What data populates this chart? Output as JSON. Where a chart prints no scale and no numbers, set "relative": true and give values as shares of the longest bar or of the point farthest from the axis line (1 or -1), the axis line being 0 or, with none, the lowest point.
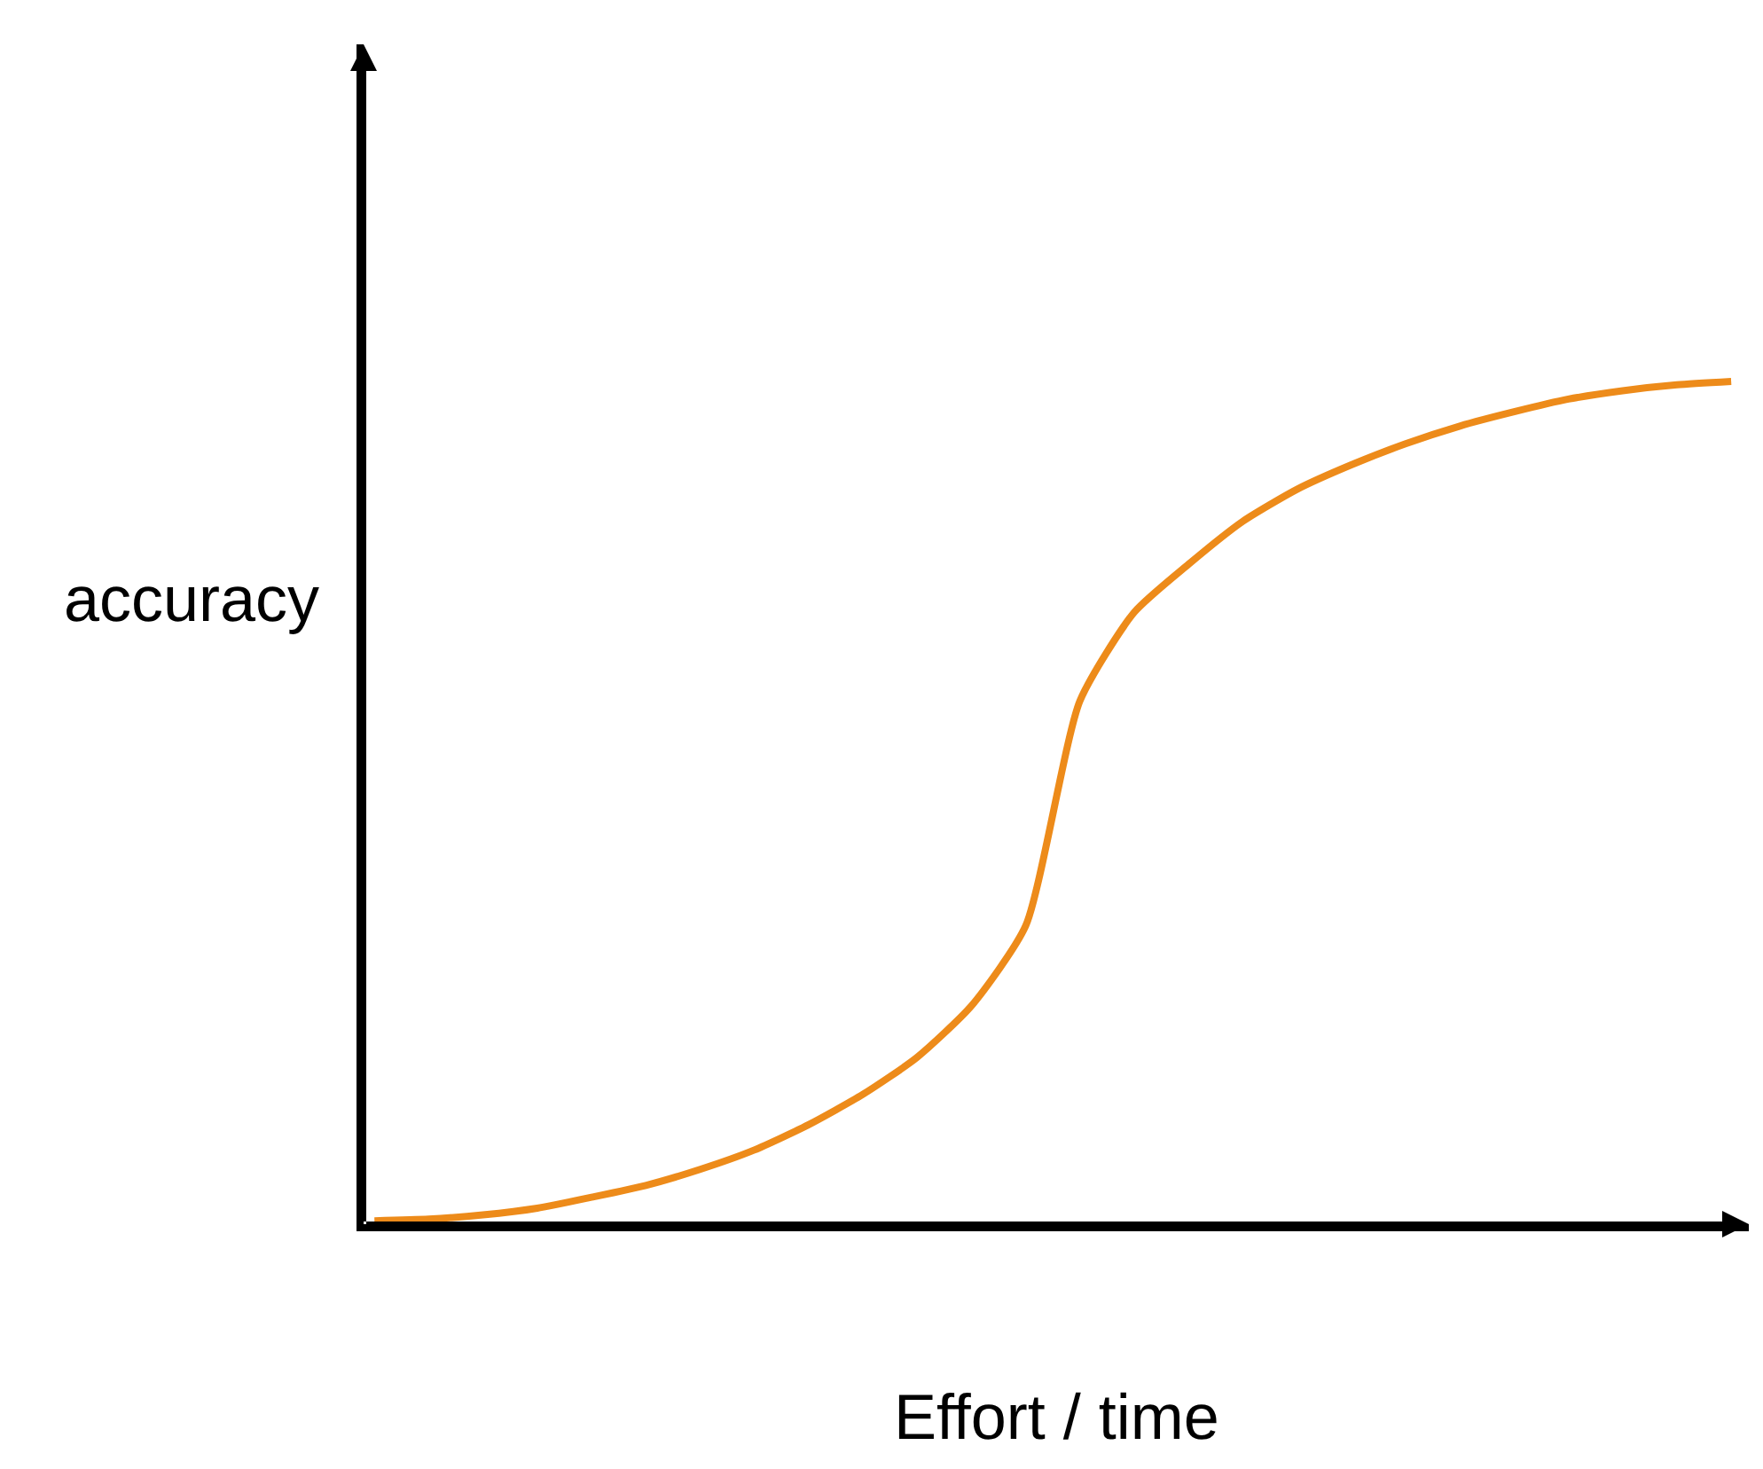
{
  "chart_data": {
    "type": "line",
    "relative": true,
    "xlabel": "Effort / time",
    "ylabel": "accuracy",
    "color": "#ed8b1a",
    "marker": "none",
    "line_style": "solid",
    "categories": [
      null,
      null,
      null,
      null,
      null,
      null,
      null,
      null,
      null,
      null,
      null,
      null,
      null,
      null,
      null,
      null,
      null,
      null,
      null,
      null,
      null,
      null,
      null,
      null,
      null,
      null
    ],
    "values": [
      0.004,
      0.006,
      0.011,
      0.019,
      0.032,
      0.046,
      0.065,
      0.088,
      0.118,
      0.154,
      0.198,
      0.259,
      0.354,
      0.621,
      0.726,
      0.783,
      0.834,
      0.872,
      0.901,
      0.926,
      0.947,
      0.964,
      0.979,
      0.989,
      0.996,
      1.0
    ]
  }
}
